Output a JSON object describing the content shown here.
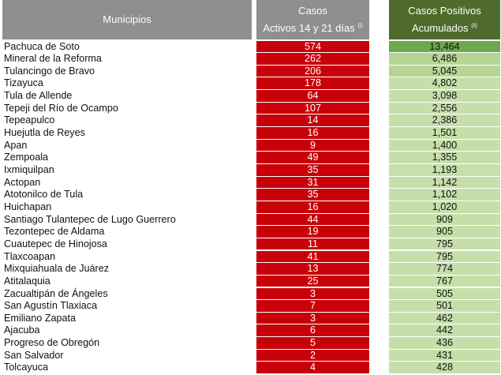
{
  "header": {
    "municipios": "Municipios",
    "activos_line1": "Casos",
    "activos_line2": "Activos 14 y 21 días",
    "activos_note": "(i)",
    "positivos_line1": "Casos Positivos",
    "positivos_line2": "Acumulados",
    "positivos_note": "(ii)"
  },
  "colors": {
    "header_gray": "#8f8f8f",
    "header_green": "#4e6b2c",
    "active_red": "#c8000a",
    "positive_green": "#c6dfaa",
    "positive_dark": "#6fa84a"
  },
  "rows": [
    {
      "name": "Pachuca de Soto",
      "active": "574",
      "positive": "13,464"
    },
    {
      "name": "Mineral de la Reforma",
      "active": "262",
      "positive": "6,486"
    },
    {
      "name": "Tulancingo de Bravo",
      "active": "206",
      "positive": "5,045"
    },
    {
      "name": "Tizayuca",
      "active": "178",
      "positive": "4,802"
    },
    {
      "name": "Tula de Allende",
      "active": "64",
      "positive": "3,098"
    },
    {
      "name": "Tepeji del Río de Ocampo",
      "active": "107",
      "positive": "2,556"
    },
    {
      "name": "Tepeapulco",
      "active": "14",
      "positive": "2,386"
    },
    {
      "name": "Huejutla de Reyes",
      "active": "16",
      "positive": "1,501"
    },
    {
      "name": "Apan",
      "active": "9",
      "positive": "1,400"
    },
    {
      "name": "Zempoala",
      "active": "49",
      "positive": "1,355"
    },
    {
      "name": "Ixmiquilpan",
      "active": "35",
      "positive": "1,193"
    },
    {
      "name": "Actopan",
      "active": "31",
      "positive": "1,142"
    },
    {
      "name": "Atotonilco de Tula",
      "active": "35",
      "positive": "1,102"
    },
    {
      "name": "Huichapan",
      "active": "16",
      "positive": "1,020"
    },
    {
      "name": "Santiago Tulantepec de Lugo Guerrero",
      "active": "44",
      "positive": "909"
    },
    {
      "name": "Tezontepec de Aldama",
      "active": "19",
      "positive": "905"
    },
    {
      "name": "Cuautepec de Hinojosa",
      "active": "11",
      "positive": "795"
    },
    {
      "name": "Tlaxcoapan",
      "active": "41",
      "positive": "795"
    },
    {
      "name": "Mixquiahuala de Juárez",
      "active": "13",
      "positive": "774"
    },
    {
      "name": "Atitalaquia",
      "active": "25",
      "positive": "767"
    },
    {
      "name": "Zacualtipán de Ángeles",
      "active": "3",
      "positive": "505"
    },
    {
      "name": "San Agustín Tlaxiaca",
      "active": "7",
      "positive": "501"
    },
    {
      "name": "Emiliano Zapata",
      "active": "3",
      "positive": "462"
    },
    {
      "name": "Ajacuba",
      "active": "6",
      "positive": "442"
    },
    {
      "name": "Progreso de Obregón",
      "active": "5",
      "positive": "436"
    },
    {
      "name": "San Salvador",
      "active": "2",
      "positive": "431"
    },
    {
      "name": "Tolcayuca",
      "active": "4",
      "positive": "428"
    }
  ]
}
